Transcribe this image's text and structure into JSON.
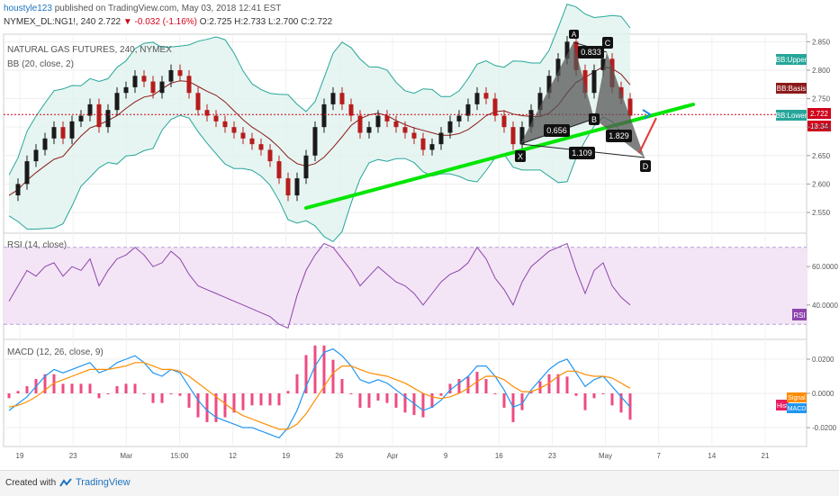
{
  "header": {
    "author": "houstyle123",
    "published": "published on TradingView.com, May 03, 2018 12:41 EST",
    "symbol_line": "NYMEX_DL:NG1!, 240",
    "change": "▼ -0.032 (-1.16%)",
    "ohlc": "O:2.725 H:2.733 L:2.700 C:2.722",
    "last": "2.722"
  },
  "colors": {
    "up": "#1a1a1a",
    "down": "#b71c1c",
    "bb_band": "#26a69a",
    "bb_basis": "#8b1a1a",
    "bb_fill": "#e0f2ee",
    "trendline": "#00e600",
    "pattern_fill": "#555555",
    "rsi": "#8e44ad",
    "rsi_fill": "#f3e5f5",
    "macd": "#2196f3",
    "signal": "#ff8c00",
    "hist": "#e91e63"
  },
  "price_panel": {
    "title": "NATURAL GAS FUTURES, 240, NYMEX",
    "indicator": "BB (20, close, 2)",
    "ylim": [
      2.52,
      2.86
    ],
    "yticks": [
      "2.850",
      "2.800",
      "2.750",
      "2.700",
      "2.650",
      "2.600",
      "2.550"
    ],
    "ytick_values": [
      2.85,
      2.8,
      2.75,
      2.7,
      2.65,
      2.6,
      2.55
    ],
    "labels": {
      "upper": "BB:Upper",
      "basis": "BB:Basis",
      "lower": "BB:Lower",
      "price": "2.722",
      "countdown": "18:34"
    },
    "pattern": {
      "points": {
        "X": "X",
        "A": "A",
        "B": "B",
        "C": "C",
        "D": "D"
      },
      "ratios": {
        "xa_ab": "0.656",
        "ab_bc": "0.833",
        "bc_cd": "1.829",
        "xa_ad": "1.109"
      }
    }
  },
  "rsi_panel": {
    "title": "RSI (14, close)",
    "ylim": [
      24,
      76
    ],
    "yticks": [
      "60.0000",
      "40.0000"
    ],
    "ytick_values": [
      60,
      40
    ],
    "bands": [
      70,
      30
    ],
    "label": "RSI"
  },
  "macd_panel": {
    "title": "MACD (12, 26, close, 9)",
    "ylim": [
      -0.03,
      0.03
    ],
    "yticks": [
      "0.0200",
      "0.0000",
      "-0.0200"
    ],
    "ytick_values": [
      0.02,
      0.0,
      -0.02
    ],
    "labels": {
      "hist": "Hist",
      "signal": "Signal",
      "macd": "MACD"
    }
  },
  "xaxis": {
    "ticks": [
      "19",
      "23",
      "Mar",
      "15:00",
      "12",
      "19",
      "26",
      "Apr",
      "9",
      "16",
      "23",
      "May",
      "7",
      "14",
      "21"
    ]
  },
  "chart_data": [
    {
      "type": "line",
      "title": "NATURAL GAS FUTURES, 240, NYMEX",
      "series": [
        {
          "name": "NG1! close",
          "values": [
            2.58,
            2.6,
            2.64,
            2.66,
            2.68,
            2.7,
            2.68,
            2.71,
            2.72,
            2.74,
            2.7,
            2.73,
            2.76,
            2.77,
            2.79,
            2.78,
            2.76,
            2.78,
            2.8,
            2.79,
            2.76,
            2.73,
            2.72,
            2.71,
            2.7,
            2.69,
            2.68,
            2.67,
            2.66,
            2.64,
            2.61,
            2.58,
            2.61,
            2.65,
            2.7,
            2.74,
            2.76,
            2.74,
            2.72,
            2.69,
            2.7,
            2.72,
            2.71,
            2.7,
            2.69,
            2.68,
            2.66,
            2.67,
            2.69,
            2.71,
            2.72,
            2.74,
            2.76,
            2.75,
            2.72,
            2.7,
            2.67,
            2.7,
            2.73,
            2.76,
            2.79,
            2.82,
            2.85,
            2.8,
            2.76,
            2.8,
            2.82,
            2.77,
            2.75,
            2.72
          ]
        }
      ],
      "ylim": [
        2.52,
        2.86
      ]
    },
    {
      "type": "line",
      "title": "RSI (14, close)",
      "series": [
        {
          "name": "RSI",
          "values": [
            42,
            50,
            58,
            55,
            60,
            62,
            55,
            60,
            58,
            64,
            50,
            58,
            64,
            66,
            70,
            66,
            60,
            62,
            68,
            64,
            56,
            50,
            48,
            46,
            44,
            42,
            40,
            38,
            36,
            34,
            30,
            28,
            45,
            58,
            66,
            72,
            70,
            64,
            58,
            50,
            55,
            60,
            56,
            52,
            50,
            46,
            40,
            46,
            52,
            56,
            58,
            62,
            70,
            64,
            54,
            48,
            40,
            52,
            60,
            64,
            68,
            70,
            72,
            58,
            46,
            58,
            62,
            50,
            44,
            40
          ]
        }
      ],
      "ylim": [
        24,
        76
      ]
    },
    {
      "type": "line",
      "title": "MACD (12, 26, close, 9)",
      "series": [
        {
          "name": "MACD",
          "values": [
            -0.01,
            -0.006,
            -0.002,
            0.004,
            0.01,
            0.014,
            0.012,
            0.014,
            0.016,
            0.018,
            0.012,
            0.014,
            0.018,
            0.02,
            0.022,
            0.018,
            0.012,
            0.01,
            0.014,
            0.012,
            0.004,
            -0.004,
            -0.01,
            -0.014,
            -0.016,
            -0.018,
            -0.02,
            -0.02,
            -0.022,
            -0.024,
            -0.026,
            -0.02,
            -0.01,
            0.004,
            0.016,
            0.024,
            0.026,
            0.022,
            0.016,
            0.008,
            0.006,
            0.008,
            0.006,
            0.002,
            -0.002,
            -0.006,
            -0.01,
            -0.008,
            -0.004,
            0.002,
            0.006,
            0.01,
            0.016,
            0.016,
            0.01,
            0.002,
            -0.008,
            -0.006,
            0.002,
            0.008,
            0.014,
            0.018,
            0.02,
            0.012,
            0.004,
            0.008,
            0.01,
            0.004,
            -0.002,
            -0.008
          ]
        },
        {
          "name": "Signal",
          "values": [
            -0.008,
            -0.007,
            -0.005,
            -0.002,
            0.002,
            0.006,
            0.008,
            0.01,
            0.012,
            0.014,
            0.014,
            0.014,
            0.015,
            0.016,
            0.018,
            0.018,
            0.016,
            0.014,
            0.014,
            0.013,
            0.01,
            0.006,
            0.002,
            -0.002,
            -0.006,
            -0.01,
            -0.013,
            -0.015,
            -0.017,
            -0.019,
            -0.021,
            -0.021,
            -0.018,
            -0.012,
            -0.004,
            0.004,
            0.012,
            0.016,
            0.016,
            0.014,
            0.012,
            0.011,
            0.01,
            0.008,
            0.006,
            0.003,
            0.0,
            -0.002,
            -0.003,
            -0.002,
            0.0,
            0.003,
            0.007,
            0.01,
            0.01,
            0.008,
            0.004,
            0.001,
            0.001,
            0.003,
            0.006,
            0.01,
            0.013,
            0.013,
            0.011,
            0.01,
            0.01,
            0.009,
            0.006,
            0.003
          ]
        }
      ],
      "ylim": [
        -0.03,
        0.03
      ]
    }
  ]
}
